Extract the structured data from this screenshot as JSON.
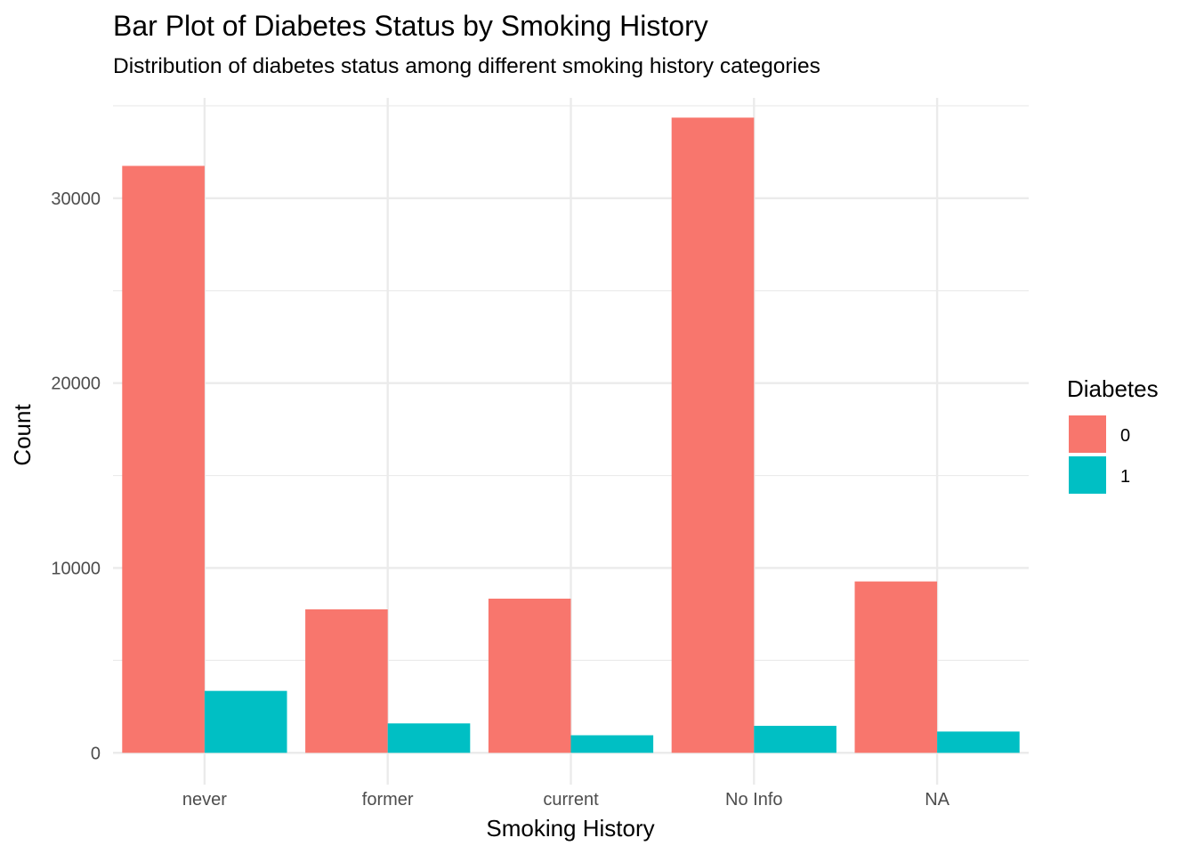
{
  "chart_data": {
    "type": "bar",
    "title": "Bar Plot of Diabetes Status by Smoking History",
    "subtitle": "Distribution of diabetes status among different smoking history categories",
    "xlabel": "Smoking History",
    "ylabel": "Count",
    "categories": [
      "never",
      "former",
      "current",
      "No Info",
      "NA"
    ],
    "series": [
      {
        "name": "0",
        "color": "#F8766D",
        "values": [
          31750,
          7760,
          8340,
          34360,
          9270
        ]
      },
      {
        "name": "1",
        "color": "#00BFC4",
        "values": [
          3350,
          1590,
          950,
          1460,
          1150
        ]
      }
    ],
    "y_ticks": [
      {
        "value": 0,
        "label": "0"
      },
      {
        "value": 10000,
        "label": "10000"
      },
      {
        "value": 20000,
        "label": "20000"
      },
      {
        "value": 30000,
        "label": "30000"
      }
    ],
    "ylim": [
      -1720,
      35430
    ],
    "grid": true,
    "legend": {
      "title": "Diabetes",
      "position": "right"
    }
  }
}
